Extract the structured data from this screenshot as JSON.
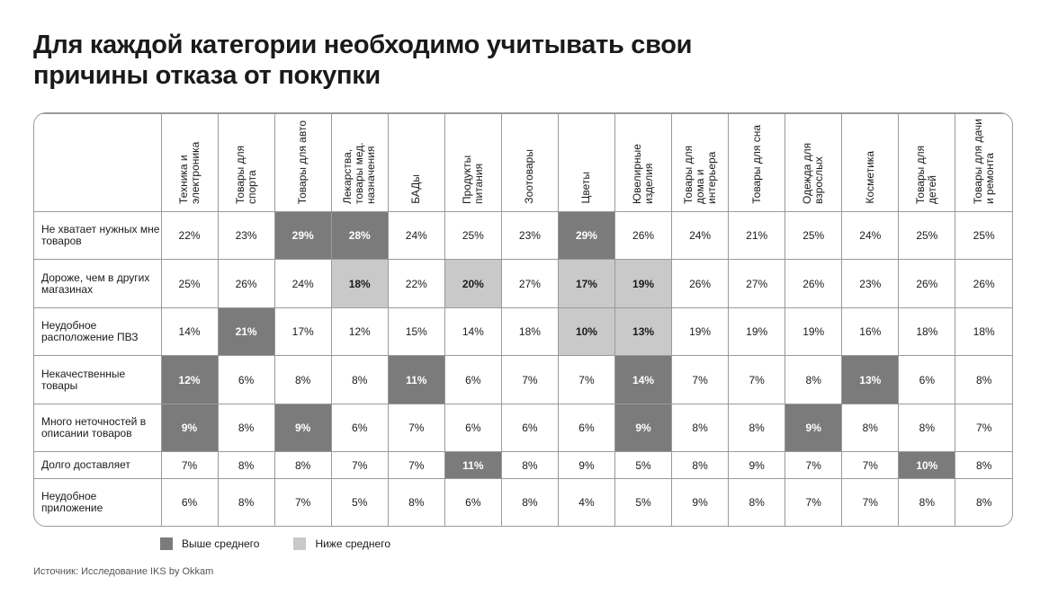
{
  "header": {
    "title": "Для каждой категории необходимо учитывать свои причины отказа от покупки"
  },
  "table": {
    "columns": [
      "Техника и электроника",
      "Товары для спорта",
      "Товары для авто",
      "Лекарства, товары мед. назначения",
      "БАДы",
      "Продукты питания",
      "Зоотовары",
      "Цветы",
      "Ювелирные изделия",
      "Товары для дома и интерьера",
      "Товары для сна",
      "Одежда для взрослых",
      "Косметика",
      "Товары для детей",
      "Товары для дачи и ремонта"
    ],
    "row_labels": [
      "Не хватает нужных мне товаров",
      "Дороже, чем в других магазинах",
      "Неудобное расположение ПВЗ",
      "Некачественные товары",
      "Много неточностей в описании товаров",
      "Долго доставляет",
      "Неудобное приложение"
    ],
    "rows": [
      [
        "22%",
        "23%",
        "29%",
        "28%",
        "24%",
        "25%",
        "23%",
        "29%",
        "26%",
        "24%",
        "21%",
        "25%",
        "24%",
        "25%",
        "25%"
      ],
      [
        "25%",
        "26%",
        "24%",
        "18%",
        "22%",
        "20%",
        "27%",
        "17%",
        "19%",
        "26%",
        "27%",
        "26%",
        "23%",
        "26%",
        "26%"
      ],
      [
        "14%",
        "21%",
        "17%",
        "12%",
        "15%",
        "14%",
        "18%",
        "10%",
        "13%",
        "19%",
        "19%",
        "19%",
        "16%",
        "18%",
        "18%"
      ],
      [
        "12%",
        "6%",
        "8%",
        "8%",
        "11%",
        "6%",
        "7%",
        "7%",
        "14%",
        "7%",
        "7%",
        "8%",
        "13%",
        "6%",
        "8%"
      ],
      [
        "9%",
        "8%",
        "9%",
        "6%",
        "7%",
        "6%",
        "6%",
        "6%",
        "9%",
        "8%",
        "8%",
        "9%",
        "8%",
        "8%",
        "7%"
      ],
      [
        "7%",
        "8%",
        "8%",
        "7%",
        "7%",
        "11%",
        "8%",
        "9%",
        "5%",
        "8%",
        "9%",
        "7%",
        "7%",
        "10%",
        "8%"
      ],
      [
        "6%",
        "8%",
        "7%",
        "5%",
        "8%",
        "6%",
        "8%",
        "4%",
        "5%",
        "9%",
        "8%",
        "7%",
        "7%",
        "8%",
        "8%"
      ]
    ],
    "highlights": [
      [
        null,
        null,
        0,
        0,
        null,
        null,
        null,
        0,
        null,
        null,
        null,
        null,
        null,
        null,
        null
      ],
      [
        null,
        null,
        null,
        1,
        null,
        1,
        null,
        1,
        1,
        null,
        null,
        null,
        null,
        null,
        null
      ],
      [
        null,
        0,
        null,
        null,
        null,
        null,
        null,
        1,
        1,
        null,
        null,
        null,
        null,
        null,
        null
      ],
      [
        0,
        null,
        null,
        null,
        0,
        null,
        null,
        null,
        0,
        null,
        null,
        null,
        0,
        null,
        null
      ],
      [
        0,
        null,
        0,
        null,
        null,
        null,
        null,
        null,
        0,
        null,
        null,
        0,
        null,
        null,
        null
      ],
      [
        null,
        null,
        null,
        null,
        null,
        0,
        null,
        null,
        null,
        null,
        null,
        null,
        null,
        0,
        null
      ],
      [
        null,
        null,
        null,
        null,
        null,
        null,
        null,
        null,
        null,
        null,
        null,
        null,
        null,
        null,
        null
      ]
    ]
  },
  "legend": [
    {
      "label": "Выше среднего",
      "color": "#7b7b7b",
      "text_color": "#ffffff"
    },
    {
      "label": "Ниже среднего",
      "color": "#c9c9c9",
      "text_color": "#1a1a1a"
    }
  ],
  "footer": {
    "source": "Источник: Исследование IKS by Okkam"
  }
}
